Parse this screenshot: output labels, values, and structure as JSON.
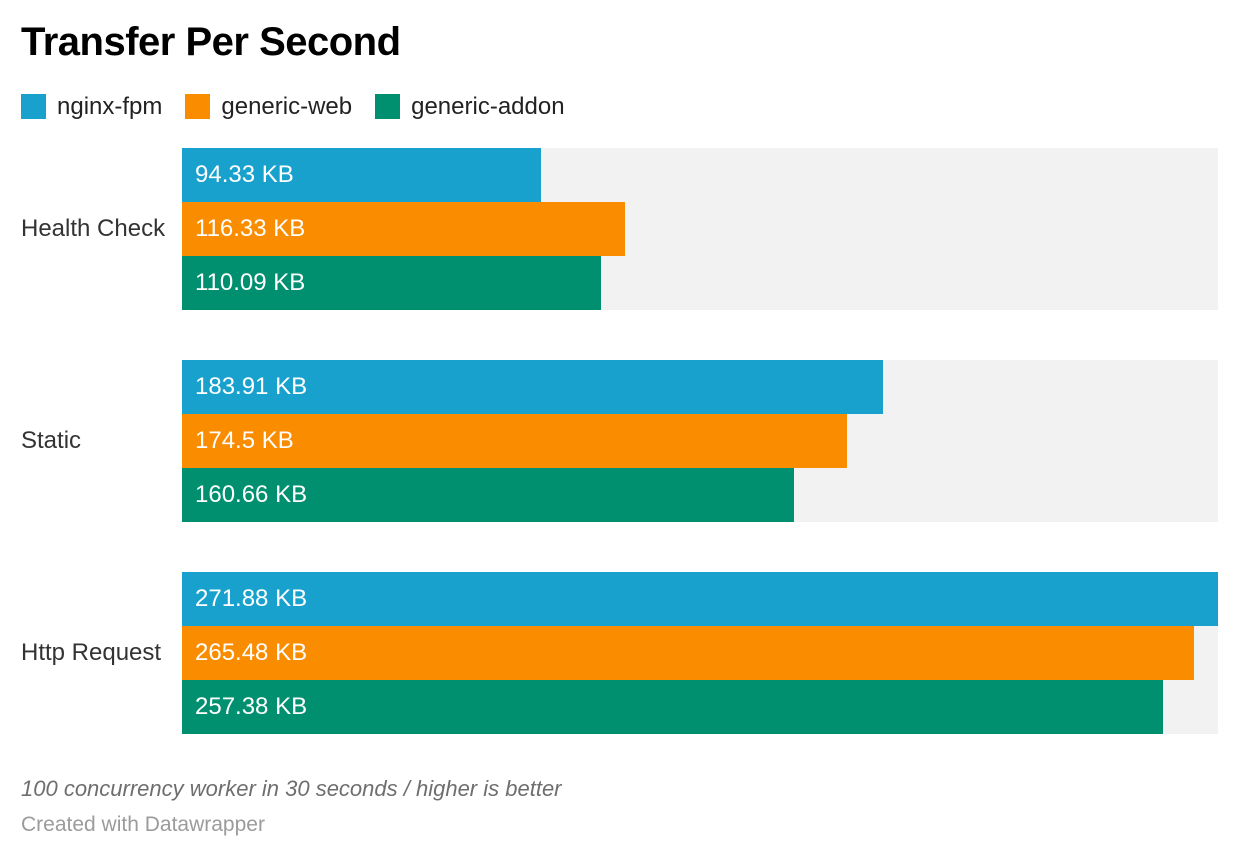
{
  "header": {
    "title": "Transfer Per Second"
  },
  "chart_data": {
    "type": "bar",
    "orientation": "horizontal",
    "title": "Transfer Per Second",
    "unit": "KB",
    "categories": [
      "Health Check",
      "Static",
      "Http Request"
    ],
    "series": [
      {
        "name": "nginx-fpm",
        "color": "#18a1cd",
        "values": [
          94.33,
          183.91,
          271.88
        ],
        "labels": [
          "94.33 KB",
          "183.91 KB",
          "271.88 KB"
        ]
      },
      {
        "name": "generic-web",
        "color": "#fa8c00",
        "values": [
          116.33,
          174.5,
          265.48
        ],
        "labels": [
          "116.33 KB",
          "174.5 KB",
          "265.48 KB"
        ]
      },
      {
        "name": "generic-addon",
        "color": "#009070",
        "values": [
          110.09,
          160.66,
          257.38
        ],
        "labels": [
          "110.09 KB",
          "160.66 KB",
          "257.38 KB"
        ]
      }
    ],
    "xlim": [
      0,
      271.88
    ],
    "grid": false,
    "legend_position": "top",
    "track_color": "#f2f2f2",
    "value_labels_inside": true
  },
  "footer": {
    "note": "100 concurrency worker in 30 seconds / higher is better",
    "attribution": "Created with Datawrapper"
  }
}
